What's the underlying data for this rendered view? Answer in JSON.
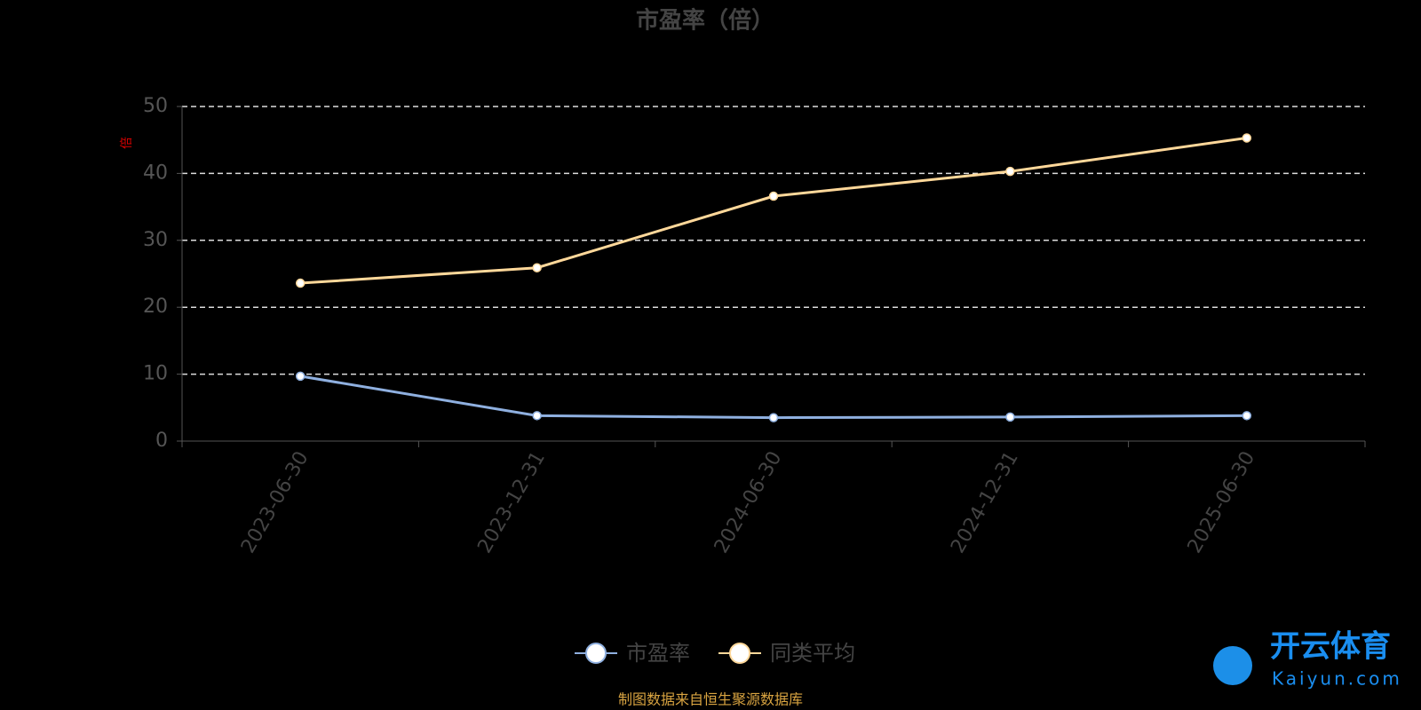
{
  "chart_data": {
    "type": "line",
    "title": "市盈率（倍）",
    "y_label": "倍",
    "categories": [
      "2023-06-30",
      "2023-12-31",
      "2024-06-30",
      "2024-12-31",
      "2025-06-30"
    ],
    "series": [
      {
        "name": "市盈率",
        "color": "#8fb0e0",
        "values": [
          9.7,
          3.8,
          3.5,
          3.6,
          3.8
        ]
      },
      {
        "name": "同类平均",
        "color": "#ffd89a",
        "values": [
          23.6,
          25.9,
          36.6,
          40.3,
          45.3
        ]
      }
    ],
    "ylim": [
      0,
      50
    ],
    "yticks": [
      0,
      10,
      20,
      30,
      40,
      50
    ],
    "grid": true,
    "source": "制图数据来自恒生聚源数据库",
    "logo": {
      "name": "开云体育",
      "site": "Kaiyun.com"
    }
  }
}
